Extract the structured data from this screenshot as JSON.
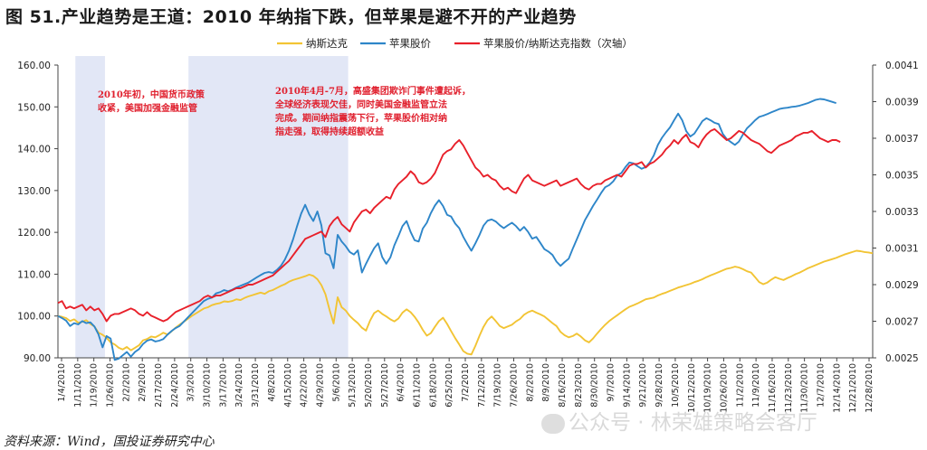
{
  "header": {
    "title": "图 51.产业趋势是王道：2010 年纳指下跌，但苹果是避不开的产业趋势"
  },
  "footer": {
    "source": "资料来源：Wind，国投证券研究中心",
    "watermark": "公众号 · 林荣雄策略会客厅"
  },
  "chart_data": {
    "type": "line",
    "title": "图 51.产业趋势是王道：2010 年纳指下跌，但苹果是避不开的产业趋势",
    "xlabel": "",
    "ylabel": "",
    "ylim": [
      90,
      160
    ],
    "y2lim": [
      0.0025,
      0.0041
    ],
    "y_ticks": [
      "90.00",
      "100.00",
      "110.00",
      "120.00",
      "130.00",
      "140.00",
      "150.00",
      "160.00"
    ],
    "y2_ticks": [
      "0.0025",
      "0.0027",
      "0.0029",
      "0.0031",
      "0.0033",
      "0.0035",
      "0.0037",
      "0.0039",
      "0.0041"
    ],
    "x_ticks": [
      "1/4/2010",
      "1/11/2010",
      "1/19/2010",
      "1/26/2010",
      "2/2/2010",
      "2/9/2010",
      "2/17/2010",
      "2/24/2010",
      "3/3/2010",
      "3/10/2010",
      "3/17/2010",
      "3/24/2010",
      "3/31/2010",
      "4/8/2010",
      "4/15/2010",
      "4/22/2010",
      "4/29/2010",
      "5/6/2010",
      "5/13/2010",
      "5/20/2010",
      "5/27/2010",
      "6/4/2010",
      "6/11/2010",
      "6/18/2010",
      "6/25/2010",
      "7/2/2010",
      "7/12/2010",
      "7/19/2010",
      "7/26/2010",
      "8/2/2010",
      "8/9/2010",
      "8/16/2010",
      "8/23/2010",
      "8/30/2010",
      "9/7/2010",
      "9/14/2010",
      "9/21/2010",
      "9/28/2010",
      "10/5/2010",
      "10/12/2010",
      "10/19/2010",
      "10/26/2010",
      "11/2/2010",
      "11/9/2010",
      "11/16/2010",
      "11/23/2010",
      "11/30/2010",
      "12/7/2010",
      "12/14/2010",
      "12/21/2010",
      "12/28/2010"
    ],
    "legend": [
      "纳斯达克",
      "苹果股价",
      "苹果股价/纳斯达克指数（次轴）"
    ],
    "legend_position": "top",
    "shaded_ranges": [
      {
        "start": 4.3,
        "end": 11.6
      },
      {
        "start": 32.2,
        "end": 71.6
      }
    ],
    "annotations": [
      {
        "lines": [
          "2010年初，中国货币政策",
          "收紧，美国加强金融监管"
        ]
      },
      {
        "lines": [
          "2010年4月-7月，高盛集团欺诈门事件遭起诉，",
          "全球经济表现欠佳，同时美国金融监管立法",
          "完成。期间纳指震荡下行，苹果股价相对纳",
          "指走强，取得持续超额收益"
        ]
      }
    ],
    "series": [
      {
        "name": "纳斯达克",
        "axis": "primary",
        "color": "#f2c434",
        "values": [
          100,
          99.8,
          99.5,
          98.8,
          99.2,
          98.4,
          98.6,
          99.0,
          98.1,
          97.5,
          96.0,
          95.5,
          94.8,
          93.7,
          93.2,
          92.4,
          92.0,
          92.6,
          91.8,
          92.4,
          93.0,
          94.2,
          94.5,
          95.1,
          94.9,
          95.4,
          96.0,
          95.6,
          96.3,
          97.2,
          97.9,
          98.6,
          99.3,
          100.0,
          100.6,
          101.2,
          101.8,
          102.1,
          102.6,
          102.9,
          103.1,
          103.5,
          103.4,
          103.6,
          104.0,
          103.8,
          104.3,
          104.7,
          105.0,
          105.3,
          105.6,
          105.3,
          105.9,
          106.2,
          106.7,
          107.2,
          107.6,
          108.2,
          108.6,
          108.9,
          109.2,
          109.5,
          109.9,
          109.6,
          108.8,
          107.4,
          105.2,
          101.5,
          98.2,
          104.5,
          102.1,
          101.3,
          100.0,
          99.1,
          98.3,
          97.2,
          96.5,
          98.9,
          100.7,
          101.3,
          100.5,
          99.9,
          99.2,
          98.7,
          99.4,
          100.8,
          101.6,
          100.9,
          99.8,
          98.4,
          96.7,
          95.3,
          95.9,
          97.4,
          98.8,
          99.6,
          98.1,
          96.4,
          94.7,
          93.2,
          91.6,
          91.0,
          90.8,
          92.9,
          95.3,
          97.4,
          99.0,
          99.9,
          98.8,
          97.6,
          97.1,
          97.5,
          97.9,
          98.7,
          99.3,
          100.3,
          100.9,
          101.3,
          100.8,
          100.4,
          99.9,
          99.1,
          98.3,
          97.6,
          96.2,
          95.4,
          94.9,
          95.2,
          95.8,
          95.1,
          94.2,
          93.7,
          94.6,
          95.8,
          96.9,
          97.9,
          98.8,
          99.5,
          100.2,
          100.9,
          101.6,
          102.2,
          102.6,
          103.0,
          103.5,
          104.0,
          104.2,
          104.4,
          104.9,
          105.3,
          105.6,
          106.0,
          106.4,
          106.8,
          107.1,
          107.4,
          107.7,
          108.1,
          108.4,
          108.8,
          109.3,
          109.7,
          110.1,
          110.5,
          110.9,
          111.3,
          111.5,
          111.8,
          111.6,
          111.2,
          110.7,
          110.4,
          109.3,
          108.1,
          107.6,
          108.0,
          108.7,
          109.3,
          108.9,
          108.6,
          109.1,
          109.5,
          110.0,
          110.4,
          110.9,
          111.4,
          111.8,
          112.2,
          112.6,
          113.0,
          113.3,
          113.6,
          113.9,
          114.3,
          114.7,
          115.0,
          115.3,
          115.6,
          115.5,
          115.3,
          115.2,
          115.0
        ]
      },
      {
        "name": "苹果股价",
        "axis": "primary",
        "color": "#2e86c9",
        "values": [
          100,
          99.5,
          98.9,
          97.6,
          98.3,
          98.0,
          98.8,
          98.3,
          98.5,
          97.5,
          95.6,
          92.5,
          95.2,
          94.6,
          89.5,
          89.8,
          90.6,
          91.4,
          90.3,
          91.4,
          92.1,
          93.3,
          94.1,
          94.4,
          93.9,
          94.1,
          94.5,
          95.5,
          96.4,
          97.1,
          97.6,
          98.6,
          99.6,
          100.6,
          101.6,
          102.6,
          103.6,
          104.1,
          104.4,
          105.4,
          105.7,
          106.2,
          105.9,
          106.3,
          106.8,
          107.2,
          107.6,
          108.0,
          108.6,
          109.2,
          109.8,
          110.3,
          110.5,
          110.3,
          111.0,
          112.0,
          113.5,
          115.6,
          118.3,
          121.5,
          124.5,
          126.6,
          124.3,
          122.7,
          125.0,
          121.7,
          115.0,
          114.5,
          111.4,
          119.4,
          117.8,
          116.7,
          115.3,
          114.7,
          115.7,
          110.4,
          112.5,
          114.4,
          116.2,
          117.4,
          114.1,
          112.5,
          114.0,
          116.9,
          119.1,
          121.5,
          122.7,
          120.1,
          118.1,
          117.8,
          120.9,
          122.3,
          124.6,
          126.4,
          127.7,
          126.3,
          124.2,
          123.8,
          122.1,
          121.0,
          118.9,
          117.2,
          115.6,
          117.4,
          119.4,
          121.6,
          122.8,
          123.1,
          122.6,
          121.7,
          121.0,
          121.7,
          122.3,
          121.5,
          120.4,
          121.3,
          120.1,
          118.5,
          118.9,
          117.5,
          116.0,
          115.4,
          114.6,
          113.0,
          112.0,
          112.9,
          113.7,
          116.1,
          118.3,
          120.6,
          122.9,
          124.6,
          126.3,
          127.8,
          129.4,
          130.8,
          131.3,
          132.2,
          133.6,
          134.2,
          135.6,
          136.7,
          136.5,
          135.8,
          135.2,
          135.6,
          136.7,
          138.4,
          140.9,
          142.6,
          143.9,
          145.1,
          146.8,
          148.4,
          146.8,
          144.2,
          142.9,
          143.6,
          145.1,
          146.6,
          147.3,
          146.8,
          146.2,
          145.9,
          143.6,
          142.3,
          141.6,
          140.9,
          141.7,
          143.4,
          144.9,
          145.8,
          146.8,
          147.6,
          147.9,
          148.3,
          148.7,
          149.1,
          149.5,
          149.7,
          149.8,
          150.0,
          150.1,
          150.3,
          150.6,
          150.9,
          151.3,
          151.7,
          151.9,
          151.8,
          151.5,
          151.2,
          150.9
        ]
      },
      {
        "name": "苹果股价/纳斯达克指数（次轴）",
        "axis": "secondary",
        "color": "#e8202a",
        "values": [
          0.0028,
          0.00281,
          0.00277,
          0.00278,
          0.00277,
          0.00278,
          0.00279,
          0.00276,
          0.00278,
          0.00276,
          0.00277,
          0.00274,
          0.0027,
          0.00273,
          0.00274,
          0.00274,
          0.00275,
          0.00276,
          0.00277,
          0.00276,
          0.00274,
          0.00273,
          0.00275,
          0.00273,
          0.00272,
          0.00271,
          0.0027,
          0.00271,
          0.00273,
          0.00275,
          0.00276,
          0.00277,
          0.00278,
          0.00279,
          0.0028,
          0.00281,
          0.00283,
          0.00284,
          0.00283,
          0.00284,
          0.00284,
          0.00285,
          0.00286,
          0.00287,
          0.00288,
          0.00288,
          0.00289,
          0.0029,
          0.0029,
          0.00291,
          0.00292,
          0.00293,
          0.00294,
          0.00295,
          0.00297,
          0.00299,
          0.00301,
          0.00303,
          0.00306,
          0.00309,
          0.00312,
          0.00315,
          0.00316,
          0.00317,
          0.00318,
          0.00319,
          0.00316,
          0.00322,
          0.00325,
          0.00327,
          0.00323,
          0.00321,
          0.00319,
          0.00324,
          0.00327,
          0.0033,
          0.00331,
          0.00329,
          0.00332,
          0.00334,
          0.00336,
          0.00338,
          0.00337,
          0.00342,
          0.00345,
          0.00347,
          0.00349,
          0.00352,
          0.0035,
          0.00346,
          0.00345,
          0.00346,
          0.00348,
          0.00351,
          0.00356,
          0.00361,
          0.00363,
          0.00364,
          0.00367,
          0.00369,
          0.00366,
          0.00362,
          0.00358,
          0.00354,
          0.00352,
          0.00349,
          0.0035,
          0.00348,
          0.00347,
          0.00344,
          0.00342,
          0.00343,
          0.00341,
          0.0034,
          0.00344,
          0.00348,
          0.0035,
          0.00347,
          0.00346,
          0.00345,
          0.00344,
          0.00345,
          0.00346,
          0.00347,
          0.00344,
          0.00345,
          0.00346,
          0.00347,
          0.00348,
          0.00345,
          0.00343,
          0.00342,
          0.00344,
          0.00345,
          0.00345,
          0.00347,
          0.00348,
          0.00349,
          0.0035,
          0.00349,
          0.00352,
          0.00355,
          0.00356,
          0.00356,
          0.00357,
          0.00354,
          0.00356,
          0.00357,
          0.00359,
          0.00361,
          0.00364,
          0.00366,
          0.00369,
          0.00367,
          0.0037,
          0.00372,
          0.00368,
          0.00367,
          0.00365,
          0.00369,
          0.00372,
          0.00374,
          0.00375,
          0.00373,
          0.00371,
          0.00369,
          0.0037,
          0.00372,
          0.00374,
          0.00373,
          0.00371,
          0.00369,
          0.00368,
          0.00367,
          0.00365,
          0.00363,
          0.00362,
          0.00364,
          0.00366,
          0.00367,
          0.00368,
          0.00369,
          0.00371,
          0.00372,
          0.00373,
          0.00373,
          0.00374,
          0.00372,
          0.0037,
          0.00369,
          0.00368,
          0.00369,
          0.00369,
          0.00368
        ]
      }
    ]
  }
}
